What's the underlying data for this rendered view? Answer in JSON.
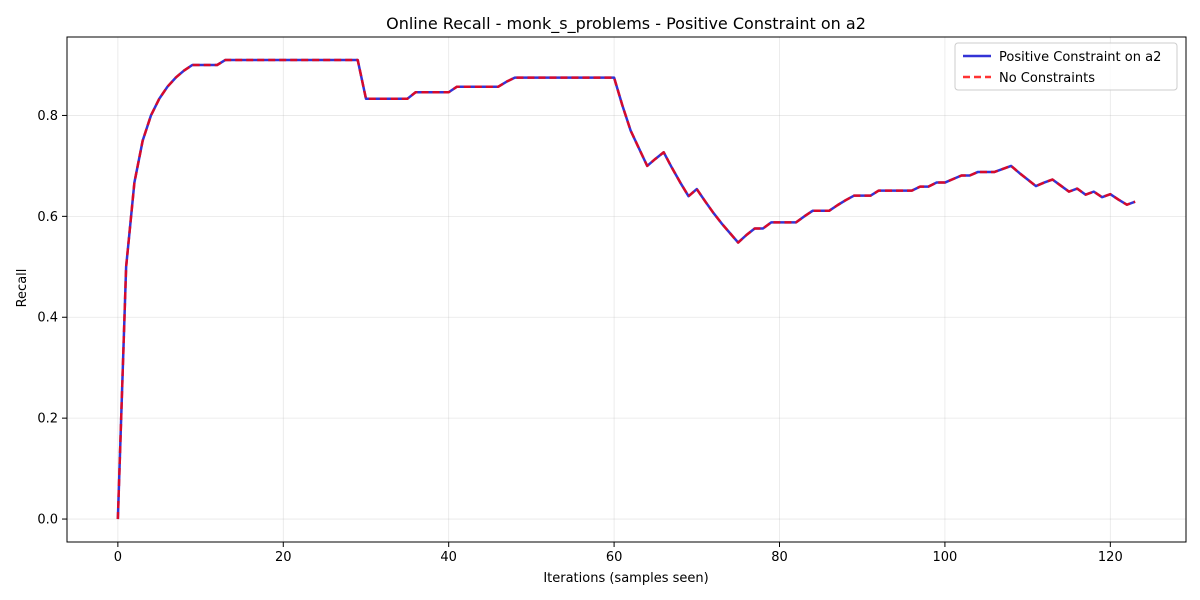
{
  "chart_data": {
    "type": "line",
    "title": "Online Recall - monk_s_problems - Positive Constraint on a2",
    "xlabel": "Iterations (samples seen)",
    "ylabel": "Recall",
    "xlim": [
      -6.15,
      129.15
    ],
    "ylim": [
      -0.0455,
      0.9555
    ],
    "xticks": [
      0,
      20,
      40,
      60,
      80,
      100,
      120
    ],
    "yticks": [
      0.0,
      0.2,
      0.4,
      0.6,
      0.8
    ],
    "ytick_labels": [
      "0.0",
      "0.2",
      "0.4",
      "0.6",
      "0.8"
    ],
    "grid": true,
    "legend_position": "top-right",
    "series": [
      {
        "name": "Positive Constraint on a2",
        "color": "#0000cc",
        "style": "solid",
        "x": [
          0,
          1,
          2,
          3,
          4,
          5,
          6,
          7,
          8,
          9,
          10,
          11,
          12,
          13,
          14,
          15,
          16,
          17,
          18,
          19,
          20,
          21,
          22,
          23,
          24,
          25,
          26,
          27,
          28,
          29,
          30,
          31,
          32,
          33,
          34,
          35,
          36,
          37,
          38,
          39,
          40,
          41,
          42,
          43,
          44,
          45,
          46,
          47,
          48,
          49,
          50,
          51,
          52,
          53,
          54,
          55,
          56,
          57,
          58,
          59,
          60,
          61,
          62,
          63,
          64,
          65,
          66,
          67,
          68,
          69,
          70,
          71,
          72,
          73,
          74,
          75,
          76,
          77,
          78,
          79,
          80,
          81,
          82,
          83,
          84,
          85,
          86,
          87,
          88,
          89,
          90,
          91,
          92,
          93,
          94,
          95,
          96,
          97,
          98,
          99,
          100,
          101,
          102,
          103,
          104,
          105,
          106,
          107,
          108,
          109,
          110,
          111,
          112,
          113,
          114,
          115,
          116,
          117,
          118,
          119,
          120,
          121,
          122,
          123
        ],
        "y": [
          0.0,
          0.5,
          0.667,
          0.75,
          0.8,
          0.833,
          0.857,
          0.875,
          0.889,
          0.9,
          0.9,
          0.9,
          0.9,
          0.91,
          0.91,
          0.91,
          0.91,
          0.91,
          0.91,
          0.91,
          0.91,
          0.91,
          0.91,
          0.91,
          0.91,
          0.91,
          0.91,
          0.91,
          0.91,
          0.91,
          0.833,
          0.833,
          0.833,
          0.833,
          0.833,
          0.833,
          0.846,
          0.846,
          0.846,
          0.846,
          0.846,
          0.857,
          0.857,
          0.857,
          0.857,
          0.857,
          0.857,
          0.867,
          0.875,
          0.875,
          0.875,
          0.875,
          0.875,
          0.875,
          0.875,
          0.875,
          0.875,
          0.875,
          0.875,
          0.875,
          0.875,
          0.82,
          0.77,
          0.735,
          0.7,
          0.714,
          0.727,
          0.696,
          0.667,
          0.64,
          0.654,
          0.63,
          0.607,
          0.586,
          0.567,
          0.548,
          0.563,
          0.576,
          0.576,
          0.588,
          0.588,
          0.588,
          0.588,
          0.6,
          0.611,
          0.611,
          0.611,
          0.622,
          0.632,
          0.641,
          0.641,
          0.641,
          0.651,
          0.651,
          0.651,
          0.651,
          0.651,
          0.659,
          0.659,
          0.667,
          0.667,
          0.674,
          0.681,
          0.681,
          0.688,
          0.688,
          0.688,
          0.694,
          0.7,
          0.686,
          0.673,
          0.66,
          0.667,
          0.673,
          0.661,
          0.649,
          0.655,
          0.643,
          0.649,
          0.638,
          0.644,
          0.633,
          0.623,
          0.629
        ]
      },
      {
        "name": "No Constraints",
        "color": "#ff0000",
        "style": "dashed",
        "x": [
          0,
          1,
          2,
          3,
          4,
          5,
          6,
          7,
          8,
          9,
          10,
          11,
          12,
          13,
          14,
          15,
          16,
          17,
          18,
          19,
          20,
          21,
          22,
          23,
          24,
          25,
          26,
          27,
          28,
          29,
          30,
          31,
          32,
          33,
          34,
          35,
          36,
          37,
          38,
          39,
          40,
          41,
          42,
          43,
          44,
          45,
          46,
          47,
          48,
          49,
          50,
          51,
          52,
          53,
          54,
          55,
          56,
          57,
          58,
          59,
          60,
          61,
          62,
          63,
          64,
          65,
          66,
          67,
          68,
          69,
          70,
          71,
          72,
          73,
          74,
          75,
          76,
          77,
          78,
          79,
          80,
          81,
          82,
          83,
          84,
          85,
          86,
          87,
          88,
          89,
          90,
          91,
          92,
          93,
          94,
          95,
          96,
          97,
          98,
          99,
          100,
          101,
          102,
          103,
          104,
          105,
          106,
          107,
          108,
          109,
          110,
          111,
          112,
          113,
          114,
          115,
          116,
          117,
          118,
          119,
          120,
          121,
          122,
          123
        ],
        "y": [
          0.0,
          0.5,
          0.667,
          0.75,
          0.8,
          0.833,
          0.857,
          0.875,
          0.889,
          0.9,
          0.9,
          0.9,
          0.9,
          0.91,
          0.91,
          0.91,
          0.91,
          0.91,
          0.91,
          0.91,
          0.91,
          0.91,
          0.91,
          0.91,
          0.91,
          0.91,
          0.91,
          0.91,
          0.91,
          0.91,
          0.833,
          0.833,
          0.833,
          0.833,
          0.833,
          0.833,
          0.846,
          0.846,
          0.846,
          0.846,
          0.846,
          0.857,
          0.857,
          0.857,
          0.857,
          0.857,
          0.857,
          0.867,
          0.875,
          0.875,
          0.875,
          0.875,
          0.875,
          0.875,
          0.875,
          0.875,
          0.875,
          0.875,
          0.875,
          0.875,
          0.875,
          0.82,
          0.77,
          0.735,
          0.7,
          0.714,
          0.727,
          0.696,
          0.667,
          0.64,
          0.654,
          0.63,
          0.607,
          0.586,
          0.567,
          0.548,
          0.563,
          0.576,
          0.576,
          0.588,
          0.588,
          0.588,
          0.588,
          0.6,
          0.611,
          0.611,
          0.611,
          0.622,
          0.632,
          0.641,
          0.641,
          0.641,
          0.651,
          0.651,
          0.651,
          0.651,
          0.651,
          0.659,
          0.659,
          0.667,
          0.667,
          0.674,
          0.681,
          0.681,
          0.688,
          0.688,
          0.688,
          0.694,
          0.7,
          0.686,
          0.673,
          0.66,
          0.667,
          0.673,
          0.661,
          0.649,
          0.655,
          0.643,
          0.649,
          0.638,
          0.644,
          0.633,
          0.623,
          0.629
        ]
      }
    ]
  }
}
